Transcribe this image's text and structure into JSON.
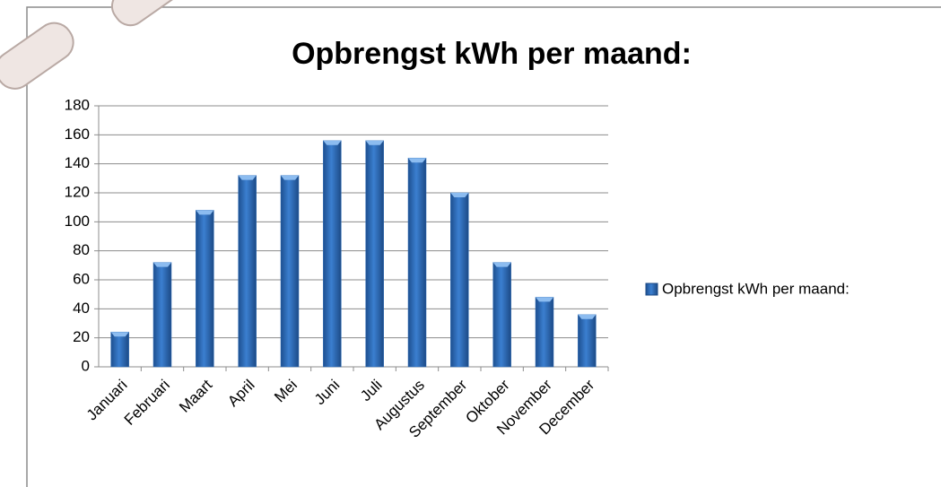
{
  "chart_data": {
    "type": "bar",
    "title": "Opbrengst kWh per maand:",
    "categories": [
      "Januari",
      "Februari",
      "Maart",
      "April",
      "Mei",
      "Juni",
      "Juli",
      "Augustus",
      "September",
      "Oktober",
      "November",
      "December"
    ],
    "series": [
      {
        "name": "Opbrengst kWh per maand:",
        "color": "#2f6db8",
        "values": [
          24,
          72,
          108,
          132,
          132,
          156,
          156,
          144,
          120,
          72,
          48,
          36
        ]
      }
    ],
    "ylim": [
      0,
      180
    ],
    "yticks": [
      0,
      20,
      40,
      60,
      80,
      100,
      120,
      140,
      160,
      180
    ],
    "grid": true,
    "legend": "right"
  }
}
